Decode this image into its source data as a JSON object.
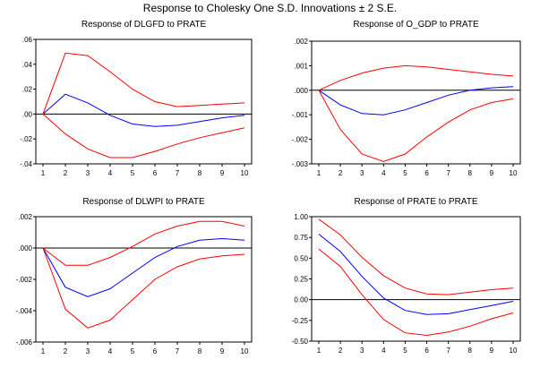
{
  "figure_title": "Response to Cholesky One S.D. Innovations ± 2 S.E.",
  "colors": {
    "response": "#0000ff",
    "bands": "#ff0000",
    "zero_line": "#000000",
    "frame": "#000000"
  },
  "chart_data": [
    {
      "type": "line",
      "title": "Response of DLGFD to PRATE",
      "x": [
        1,
        2,
        3,
        4,
        5,
        6,
        7,
        8,
        9,
        10
      ],
      "xticks": [
        "1",
        "2",
        "3",
        "4",
        "5",
        "6",
        "7",
        "8",
        "9",
        "10"
      ],
      "ylim": [
        -0.04,
        0.06
      ],
      "yticks": [
        ".06",
        ".04",
        ".02",
        ".00",
        "-.02",
        "-.04"
      ],
      "ytick_values": [
        0.06,
        0.04,
        0.02,
        0.0,
        -0.02,
        -0.04
      ],
      "series": [
        {
          "name": "response",
          "values": [
            0.0,
            0.016,
            0.009,
            -0.001,
            -0.008,
            -0.01,
            -0.009,
            -0.006,
            -0.003,
            -0.001
          ]
        },
        {
          "name": "upper",
          "values": [
            0.0,
            0.049,
            0.047,
            0.034,
            0.02,
            0.01,
            0.006,
            0.007,
            0.008,
            0.009
          ]
        },
        {
          "name": "lower",
          "values": [
            0.0,
            -0.016,
            -0.028,
            -0.035,
            -0.035,
            -0.03,
            -0.024,
            -0.019,
            -0.015,
            -0.011
          ]
        }
      ]
    },
    {
      "type": "line",
      "title": "Response of O_GDP to PRATE",
      "x": [
        1,
        2,
        3,
        4,
        5,
        6,
        7,
        8,
        9,
        10
      ],
      "xticks": [
        "1",
        "2",
        "3",
        "4",
        "5",
        "6",
        "7",
        "8",
        "9",
        "10"
      ],
      "ylim": [
        -0.003,
        0.002
      ],
      "yticks": [
        ".002",
        ".001",
        ".000",
        "-.001",
        "-.002",
        "-.003"
      ],
      "ytick_values": [
        0.002,
        0.001,
        0.0,
        -0.001,
        -0.002,
        -0.003
      ],
      "series": [
        {
          "name": "response",
          "values": [
            0.0,
            -0.0006,
            -0.00095,
            -0.001,
            -0.0008,
            -0.0005,
            -0.0002,
            0.0,
            0.0001,
            0.00015
          ]
        },
        {
          "name": "upper",
          "values": [
            0.0,
            0.0004,
            0.0007,
            0.0009,
            0.001,
            0.00095,
            0.00085,
            0.00075,
            0.00065,
            0.00058
          ]
        },
        {
          "name": "lower",
          "values": [
            0.0,
            -0.0016,
            -0.0026,
            -0.0029,
            -0.0026,
            -0.0019,
            -0.0013,
            -0.0008,
            -0.0005,
            -0.00035
          ]
        }
      ]
    },
    {
      "type": "line",
      "title": "Response of DLWPI to PRATE",
      "x": [
        1,
        2,
        3,
        4,
        5,
        6,
        7,
        8,
        9,
        10
      ],
      "xticks": [
        "1",
        "2",
        "3",
        "4",
        "5",
        "6",
        "7",
        "8",
        "9",
        "10"
      ],
      "ylim": [
        -0.006,
        0.002
      ],
      "yticks": [
        ".002",
        ".000",
        "-.002",
        "-.004",
        "-.006"
      ],
      "ytick_values": [
        0.002,
        0.0,
        -0.002,
        -0.004,
        -0.006
      ],
      "series": [
        {
          "name": "response",
          "values": [
            0.0,
            -0.0025,
            -0.0031,
            -0.0026,
            -0.0016,
            -0.0006,
            0.0001,
            0.0005,
            0.0006,
            0.0005
          ]
        },
        {
          "name": "upper",
          "values": [
            0.0,
            -0.0011,
            -0.0011,
            -0.0006,
            0.0001,
            0.0009,
            0.0014,
            0.0017,
            0.0017,
            0.0014
          ]
        },
        {
          "name": "lower",
          "values": [
            0.0,
            -0.0039,
            -0.0051,
            -0.0046,
            -0.0033,
            -0.002,
            -0.0012,
            -0.0007,
            -0.0005,
            -0.0004
          ]
        }
      ]
    },
    {
      "type": "line",
      "title": "Response of PRATE to PRATE",
      "x": [
        1,
        2,
        3,
        4,
        5,
        6,
        7,
        8,
        9,
        10
      ],
      "xticks": [
        "1",
        "2",
        "3",
        "4",
        "5",
        "6",
        "7",
        "8",
        "9",
        "10"
      ],
      "ylim": [
        -0.5,
        1.0
      ],
      "yticks": [
        "1.00",
        "0.75",
        "0.50",
        "0.25",
        "0.00",
        "-0.25",
        "-0.50"
      ],
      "ytick_values": [
        1.0,
        0.75,
        0.5,
        0.25,
        0.0,
        -0.25,
        -0.5
      ],
      "series": [
        {
          "name": "response",
          "values": [
            0.79,
            0.58,
            0.28,
            0.02,
            -0.13,
            -0.18,
            -0.17,
            -0.12,
            -0.07,
            -0.02
          ]
        },
        {
          "name": "upper",
          "values": [
            0.97,
            0.78,
            0.51,
            0.29,
            0.14,
            0.07,
            0.06,
            0.09,
            0.12,
            0.14
          ]
        },
        {
          "name": "lower",
          "values": [
            0.61,
            0.4,
            0.06,
            -0.24,
            -0.4,
            -0.43,
            -0.39,
            -0.32,
            -0.23,
            -0.16
          ]
        }
      ]
    }
  ]
}
